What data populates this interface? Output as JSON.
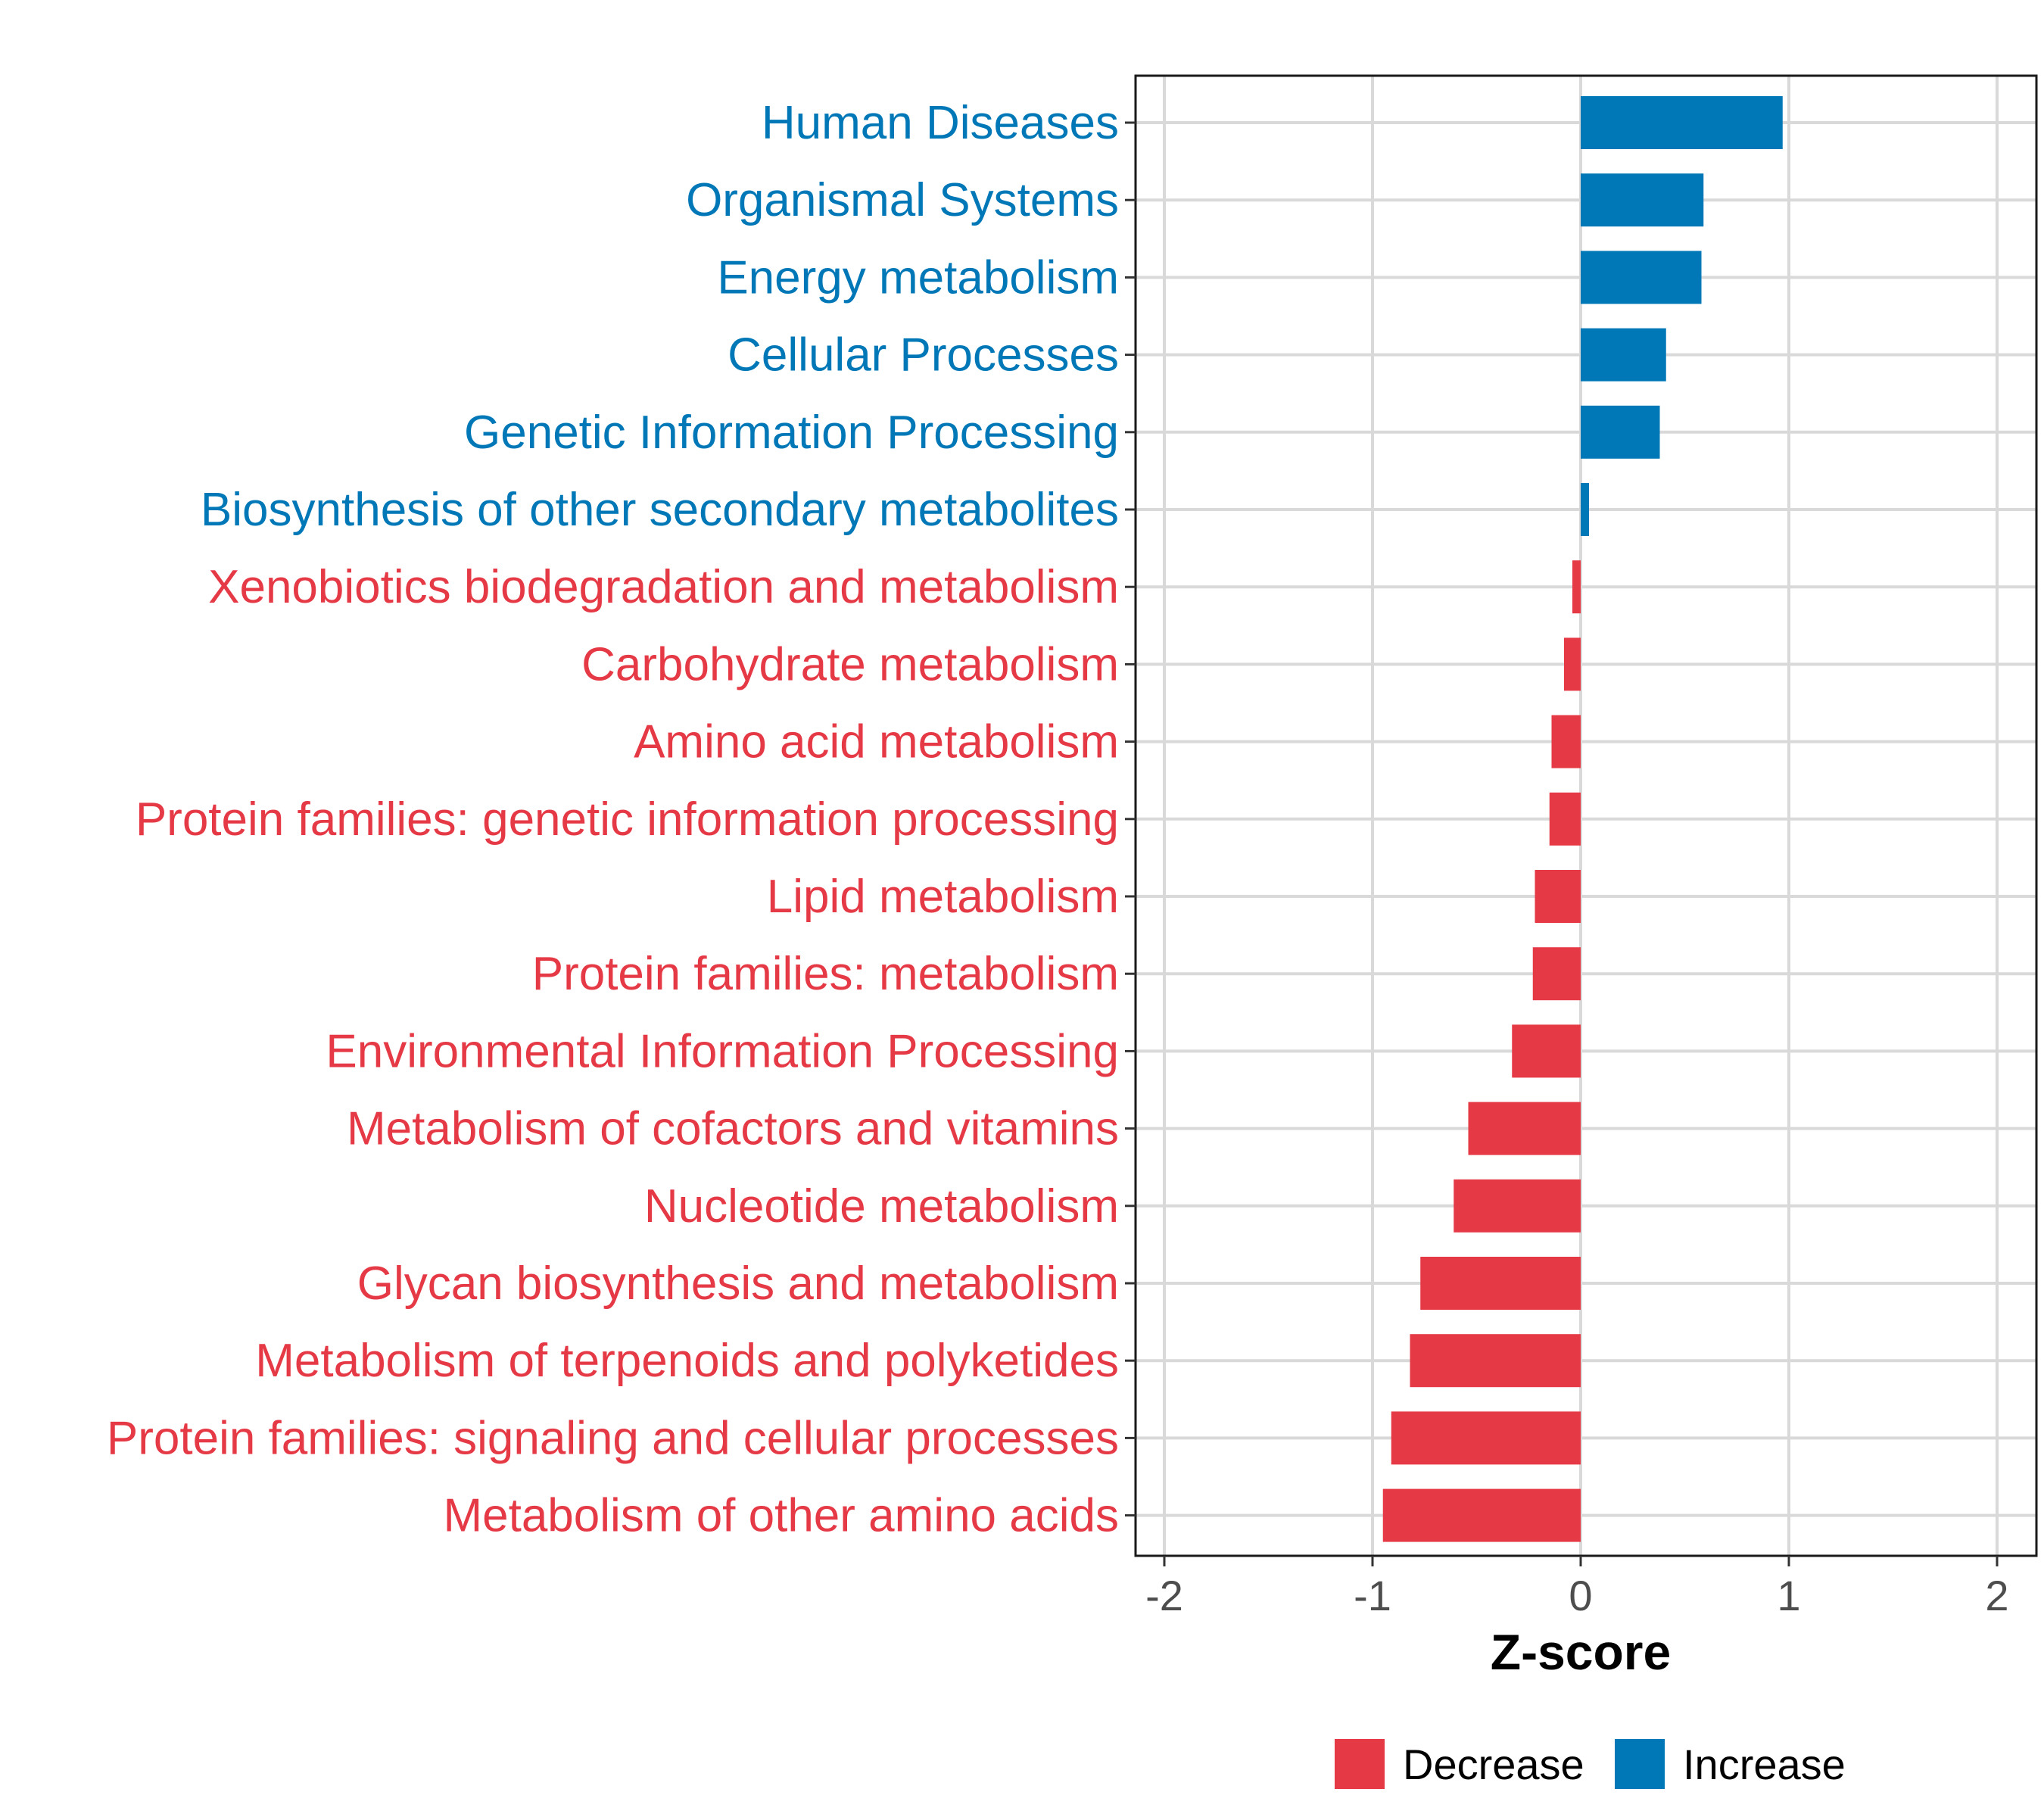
{
  "chart_data": {
    "type": "bar",
    "orientation": "horizontal",
    "xlabel": "Z-score",
    "xlim": [
      -2.1,
      2.15
    ],
    "xticks": [
      -2,
      -1,
      0,
      1,
      2
    ],
    "xtick_labels": [
      "-2",
      "-1",
      "0",
      "1",
      "2"
    ],
    "grid": true,
    "legend_position": "bottom",
    "legend": [
      {
        "label": "Decrease",
        "color": "#E63946"
      },
      {
        "label": "Increase",
        "color": "#0077B6"
      }
    ],
    "categories": [
      "Human Diseases",
      "Organismal Systems",
      "Energy metabolism",
      "Cellular Processes",
      "Genetic Information Processing",
      "Biosynthesis of other secondary metabolites",
      "Xenobiotics biodegradation and metabolism",
      "Carbohydrate metabolism",
      "Amino acid metabolism",
      "Protein families: genetic information processing",
      "Lipid metabolism",
      "Protein families: metabolism",
      "Environmental Information Processing",
      "Metabolism of cofactors and vitamins",
      "Nucleotide metabolism",
      "Glycan biosynthesis and metabolism",
      "Metabolism of terpenoids and polyketides",
      "Protein families: signaling and cellular processes",
      "Metabolism of other amino acids"
    ],
    "values": [
      0.97,
      0.59,
      0.58,
      0.41,
      0.38,
      0.04,
      -0.04,
      -0.08,
      -0.14,
      -0.15,
      -0.22,
      -0.23,
      -0.33,
      -0.54,
      -0.61,
      -0.77,
      -0.82,
      -0.91,
      -0.95
    ],
    "groups": [
      "Increase",
      "Increase",
      "Increase",
      "Increase",
      "Increase",
      "Increase",
      "Decrease",
      "Decrease",
      "Decrease",
      "Decrease",
      "Decrease",
      "Decrease",
      "Decrease",
      "Decrease",
      "Decrease",
      "Decrease",
      "Decrease",
      "Decrease",
      "Decrease"
    ]
  }
}
